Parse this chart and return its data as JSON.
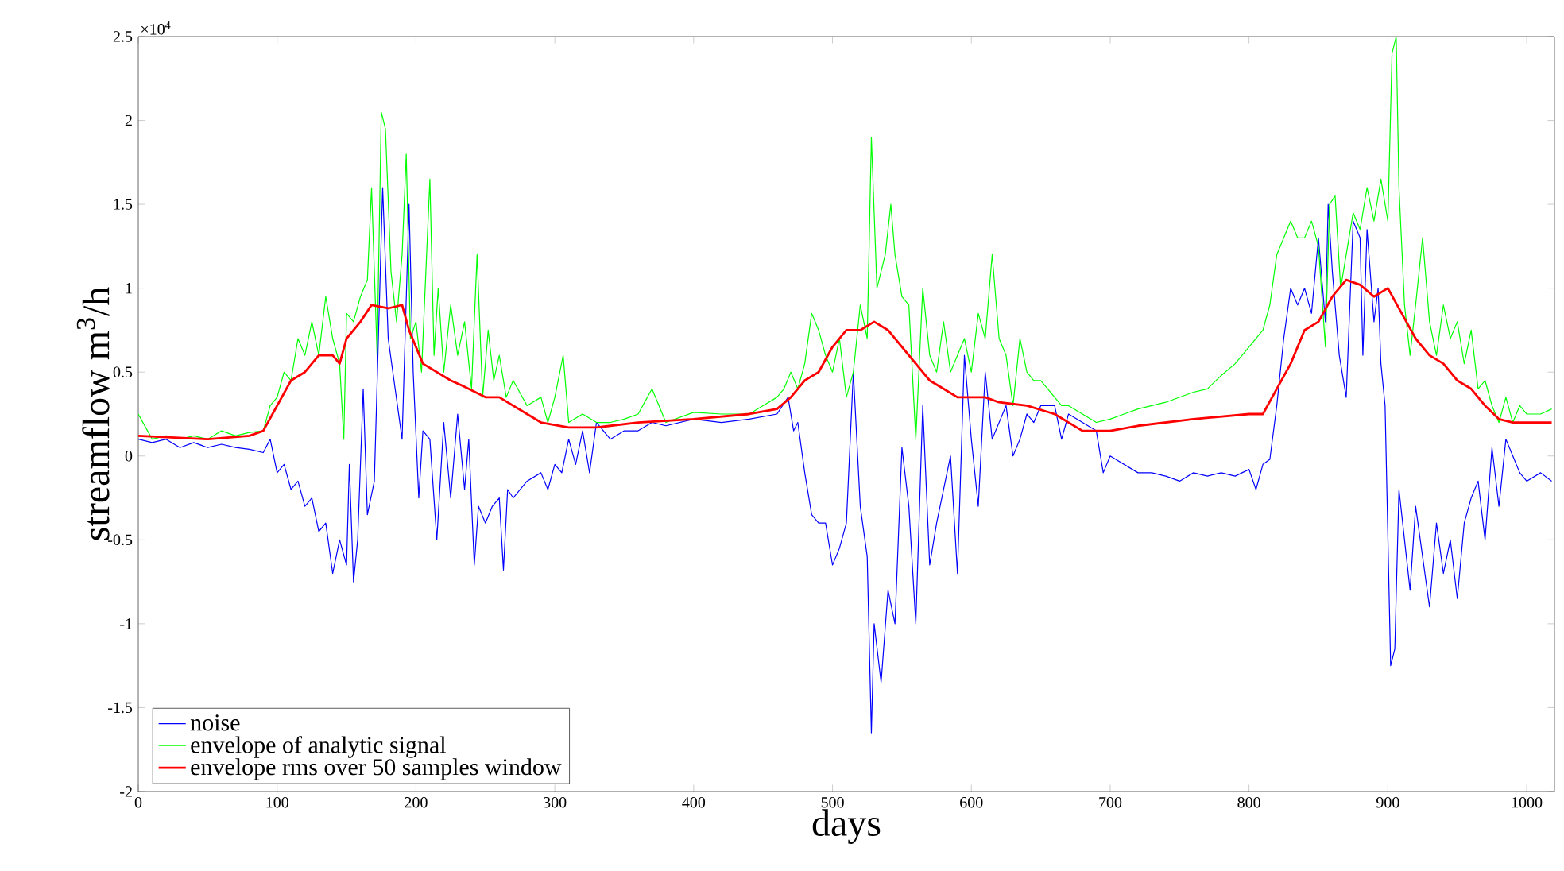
{
  "chart_data": {
    "type": "line",
    "xlabel": "days",
    "ylabel": "streamflow m$^{3}$/h",
    "annotations": [
      "×10$^{4}$"
    ],
    "xlim": [
      0,
      1020
    ],
    "ylim": [
      -2,
      2.5
    ],
    "xticks": [
      0,
      100,
      200,
      300,
      400,
      500,
      600,
      700,
      800,
      900,
      1000
    ],
    "yticks": [
      -2,
      -1.5,
      -1,
      -0.5,
      0,
      0.5,
      1,
      1.5,
      2,
      2.5
    ],
    "legend": "bottom left",
    "grid": false,
    "marker": "none",
    "line_style": "solid",
    "series": [
      {
        "name": "noise",
        "color": "#0000ff",
        "x": [
          0,
          10,
          20,
          30,
          40,
          50,
          60,
          70,
          80,
          90,
          95,
          100,
          105,
          110,
          115,
          120,
          125,
          130,
          135,
          140,
          145,
          150,
          152,
          155,
          158,
          162,
          165,
          170,
          176,
          180,
          185,
          190,
          195,
          198,
          202,
          205,
          210,
          215,
          220,
          225,
          230,
          235,
          238,
          242,
          245,
          250,
          255,
          260,
          263,
          266,
          270,
          280,
          290,
          295,
          300,
          305,
          310,
          315,
          320,
          325,
          330,
          335,
          340,
          350,
          360,
          370,
          380,
          400,
          420,
          440,
          460,
          468,
          472,
          475,
          480,
          485,
          490,
          495,
          500,
          505,
          510,
          515,
          520,
          525,
          528,
          530,
          535,
          540,
          545,
          550,
          555,
          560,
          565,
          570,
          575,
          580,
          585,
          590,
          595,
          600,
          605,
          610,
          615,
          620,
          625,
          630,
          635,
          640,
          645,
          650,
          660,
          665,
          670,
          680,
          690,
          695,
          700,
          710,
          720,
          730,
          740,
          750,
          760,
          770,
          780,
          790,
          800,
          805,
          810,
          815,
          820,
          825,
          830,
          835,
          840,
          845,
          850,
          855,
          857,
          860,
          865,
          870,
          875,
          880,
          882,
          885,
          890,
          893,
          895,
          898,
          902,
          905,
          908,
          912,
          916,
          920,
          925,
          930,
          935,
          940,
          945,
          950,
          955,
          960,
          965,
          970,
          975,
          980,
          985,
          990,
          995,
          1000,
          1010,
          1018
        ],
        "values": [
          0.1,
          0.08,
          0.1,
          0.05,
          0.08,
          0.05,
          0.07,
          0.05,
          0.04,
          0.02,
          0.1,
          -0.1,
          -0.05,
          -0.2,
          -0.15,
          -0.3,
          -0.25,
          -0.45,
          -0.4,
          -0.7,
          -0.5,
          -0.65,
          -0.05,
          -0.75,
          -0.5,
          0.4,
          -0.35,
          -0.15,
          1.6,
          0.7,
          0.4,
          0.1,
          1.5,
          0.5,
          -0.25,
          0.15,
          0.1,
          -0.5,
          0.2,
          -0.25,
          0.25,
          -0.2,
          0.1,
          -0.65,
          -0.3,
          -0.4,
          -0.3,
          -0.25,
          -0.68,
          -0.2,
          -0.25,
          -0.15,
          -0.1,
          -0.2,
          -0.05,
          -0.1,
          0.1,
          -0.05,
          0.15,
          -0.1,
          0.2,
          0.15,
          0.1,
          0.15,
          0.15,
          0.2,
          0.18,
          0.22,
          0.2,
          0.22,
          0.25,
          0.35,
          0.15,
          0.2,
          -0.1,
          -0.35,
          -0.4,
          -0.4,
          -0.65,
          -0.55,
          -0.4,
          0.5,
          -0.3,
          -0.6,
          -1.65,
          -1.0,
          -1.35,
          -0.8,
          -1.0,
          0.05,
          -0.3,
          -1.0,
          0.3,
          -0.65,
          -0.4,
          -0.2,
          0.0,
          -0.7,
          0.6,
          0.1,
          -0.3,
          0.5,
          0.1,
          0.2,
          0.3,
          0.0,
          0.1,
          0.25,
          0.2,
          0.3,
          0.3,
          0.1,
          0.25,
          0.2,
          0.15,
          -0.1,
          0.0,
          -0.05,
          -0.1,
          -0.1,
          -0.12,
          -0.15,
          -0.1,
          -0.12,
          -0.1,
          -0.12,
          -0.08,
          -0.2,
          -0.05,
          -0.02,
          0.3,
          0.7,
          1.0,
          0.9,
          1.0,
          0.85,
          1.3,
          0.8,
          1.5,
          1.1,
          0.6,
          0.35,
          1.4,
          1.3,
          0.6,
          1.35,
          0.8,
          1.0,
          0.55,
          0.3,
          -1.25,
          -1.15,
          -0.2,
          -0.5,
          -0.8,
          -0.3,
          -0.6,
          -0.9,
          -0.4,
          -0.7,
          -0.5,
          -0.85,
          -0.4,
          -0.25,
          -0.15,
          -0.5,
          0.05,
          -0.3,
          0.1,
          0.0,
          -0.1,
          -0.15,
          -0.1,
          -0.15
        ]
      },
      {
        "name": "envelope of analytic signal",
        "color": "#00ff00",
        "x": [
          0,
          10,
          20,
          30,
          40,
          50,
          60,
          70,
          80,
          90,
          95,
          100,
          105,
          110,
          115,
          120,
          125,
          130,
          135,
          140,
          145,
          148,
          150,
          155,
          160,
          165,
          168,
          172,
          175,
          178,
          182,
          186,
          190,
          193,
          196,
          200,
          204,
          210,
          213,
          216,
          220,
          225,
          230,
          235,
          240,
          244,
          248,
          252,
          256,
          260,
          265,
          270,
          280,
          290,
          295,
          300,
          306,
          310,
          320,
          330,
          340,
          350,
          360,
          370,
          380,
          400,
          420,
          440,
          460,
          465,
          470,
          475,
          480,
          485,
          490,
          495,
          500,
          505,
          510,
          515,
          520,
          525,
          528,
          532,
          538,
          542,
          545,
          550,
          555,
          560,
          565,
          570,
          575,
          580,
          585,
          590,
          595,
          600,
          605,
          610,
          615,
          620,
          625,
          630,
          635,
          640,
          645,
          650,
          660,
          665,
          670,
          680,
          690,
          700,
          710,
          720,
          730,
          740,
          750,
          760,
          770,
          780,
          790,
          800,
          810,
          815,
          820,
          830,
          835,
          840,
          845,
          850,
          855,
          858,
          862,
          866,
          870,
          875,
          880,
          885,
          890,
          895,
          900,
          903,
          906,
          908,
          912,
          916,
          920,
          925,
          930,
          935,
          940,
          945,
          950,
          955,
          960,
          965,
          970,
          975,
          980,
          985,
          990,
          995,
          1000,
          1010,
          1018
        ],
        "values": [
          0.25,
          0.1,
          0.12,
          0.1,
          0.12,
          0.1,
          0.15,
          0.12,
          0.14,
          0.15,
          0.3,
          0.35,
          0.5,
          0.45,
          0.7,
          0.6,
          0.8,
          0.6,
          0.95,
          0.7,
          0.55,
          0.1,
          0.85,
          0.8,
          0.95,
          1.05,
          1.6,
          0.6,
          2.05,
          1.95,
          1.1,
          0.8,
          1.2,
          1.8,
          0.7,
          0.8,
          0.5,
          1.65,
          0.6,
          1.0,
          0.5,
          0.9,
          0.6,
          0.8,
          0.4,
          1.2,
          0.35,
          0.75,
          0.45,
          0.6,
          0.35,
          0.45,
          0.3,
          0.35,
          0.2,
          0.35,
          0.6,
          0.2,
          0.25,
          0.2,
          0.2,
          0.22,
          0.25,
          0.4,
          0.2,
          0.26,
          0.25,
          0.25,
          0.35,
          0.4,
          0.5,
          0.4,
          0.55,
          0.85,
          0.75,
          0.6,
          0.5,
          0.7,
          0.35,
          0.5,
          0.9,
          0.7,
          1.9,
          1.0,
          1.2,
          1.5,
          1.2,
          0.95,
          0.9,
          0.1,
          1.0,
          0.6,
          0.5,
          0.8,
          0.5,
          0.6,
          0.7,
          0.5,
          0.85,
          0.7,
          1.2,
          0.7,
          0.6,
          0.3,
          0.7,
          0.5,
          0.45,
          0.45,
          0.35,
          0.3,
          0.3,
          0.25,
          0.2,
          0.22,
          0.25,
          0.28,
          0.3,
          0.32,
          0.35,
          0.38,
          0.4,
          0.48,
          0.55,
          0.65,
          0.75,
          0.9,
          1.2,
          1.4,
          1.3,
          1.3,
          1.4,
          1.25,
          0.65,
          1.5,
          1.55,
          1.0,
          1.2,
          1.45,
          1.35,
          1.6,
          1.4,
          1.65,
          1.4,
          2.4,
          2.5,
          1.6,
          0.9,
          0.6,
          0.9,
          1.3,
          0.8,
          0.6,
          0.9,
          0.7,
          0.8,
          0.55,
          0.75,
          0.4,
          0.45,
          0.3,
          0.2,
          0.35,
          0.2,
          0.3,
          0.25,
          0.25,
          0.28
        ]
      },
      {
        "name": "envelope rms over 50 samples window",
        "color": "#ff0000",
        "x": [
          0,
          50,
          80,
          90,
          100,
          110,
          120,
          130,
          140,
          145,
          150,
          160,
          168,
          180,
          190,
          195,
          205,
          215,
          225,
          233,
          250,
          260,
          270,
          290,
          310,
          330,
          360,
          400,
          440,
          460,
          470,
          480,
          490,
          500,
          510,
          520,
          530,
          540,
          550,
          560,
          570,
          580,
          590,
          600,
          610,
          620,
          640,
          660,
          670,
          680,
          700,
          720,
          760,
          800,
          810,
          820,
          830,
          840,
          850,
          860,
          870,
          880,
          890,
          900,
          910,
          920,
          930,
          940,
          950,
          960,
          970,
          980,
          990,
          1000,
          1018
        ],
        "values": [
          0.12,
          0.1,
          0.12,
          0.15,
          0.3,
          0.45,
          0.5,
          0.6,
          0.6,
          0.55,
          0.7,
          0.8,
          0.9,
          0.88,
          0.9,
          0.75,
          0.55,
          0.5,
          0.45,
          0.42,
          0.35,
          0.35,
          0.3,
          0.2,
          0.17,
          0.17,
          0.2,
          0.22,
          0.25,
          0.28,
          0.35,
          0.45,
          0.5,
          0.65,
          0.75,
          0.75,
          0.8,
          0.75,
          0.65,
          0.55,
          0.45,
          0.4,
          0.35,
          0.35,
          0.35,
          0.32,
          0.3,
          0.25,
          0.2,
          0.15,
          0.15,
          0.18,
          0.22,
          0.25,
          0.25,
          0.4,
          0.55,
          0.75,
          0.8,
          0.95,
          1.05,
          1.02,
          0.95,
          1.0,
          0.85,
          0.7,
          0.6,
          0.55,
          0.45,
          0.4,
          0.3,
          0.22,
          0.2,
          0.2,
          0.2
        ]
      }
    ]
  }
}
